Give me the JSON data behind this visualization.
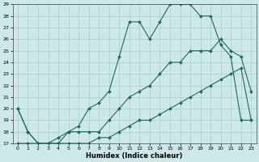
{
  "xlabel": "Humidex (Indice chaleur)",
  "background_color": "#cce8e8",
  "grid_color": "#aacccc",
  "line_color": "#1a6b5a",
  "xlim": [
    -0.5,
    23.5
  ],
  "ylim": [
    17,
    29
  ],
  "xticks": [
    0,
    1,
    2,
    3,
    4,
    5,
    6,
    7,
    8,
    9,
    10,
    11,
    12,
    13,
    14,
    15,
    16,
    17,
    18,
    19,
    20,
    21,
    22,
    23
  ],
  "yticks": [
    17,
    18,
    19,
    20,
    21,
    22,
    23,
    24,
    25,
    26,
    27,
    28,
    29
  ],
  "line1_x": [
    0,
    1,
    2,
    3,
    4,
    5,
    6,
    7,
    8,
    9,
    10,
    11,
    12,
    13,
    14,
    15,
    16,
    17,
    18,
    19,
    20,
    21,
    22,
    23
  ],
  "line1_y": [
    20,
    18,
    17,
    17,
    17,
    18,
    18,
    18,
    18,
    19,
    20,
    21,
    21.5,
    22,
    23,
    24,
    24,
    25,
    25,
    25,
    26,
    25,
    24.5,
    21.5
  ],
  "line2_x": [
    0,
    1,
    2,
    3,
    4,
    5,
    6,
    7,
    8,
    9,
    10,
    11,
    12,
    13,
    14,
    15,
    16,
    17,
    18,
    19,
    20,
    21,
    22,
    23
  ],
  "line2_y": [
    17,
    17,
    17,
    17,
    17,
    17,
    17,
    17,
    17.5,
    17.5,
    18,
    18.5,
    19,
    19,
    19.5,
    20,
    20.5,
    21,
    21.5,
    22,
    22.5,
    23,
    23.5,
    19
  ],
  "line3_x": [
    0,
    1,
    2,
    3,
    4,
    5,
    6,
    7,
    8,
    9,
    10,
    11,
    12,
    13,
    14,
    15,
    16,
    17,
    18,
    19,
    20,
    21,
    22,
    23
  ],
  "line3_y": [
    20,
    18,
    17,
    17,
    17.5,
    18,
    18.5,
    20,
    20.5,
    21.5,
    24.5,
    27.5,
    27.5,
    26,
    27.5,
    29,
    29,
    29,
    28,
    28,
    25.5,
    24.5,
    19,
    19
  ],
  "line_width": 0.8,
  "marker_size": 2.0
}
